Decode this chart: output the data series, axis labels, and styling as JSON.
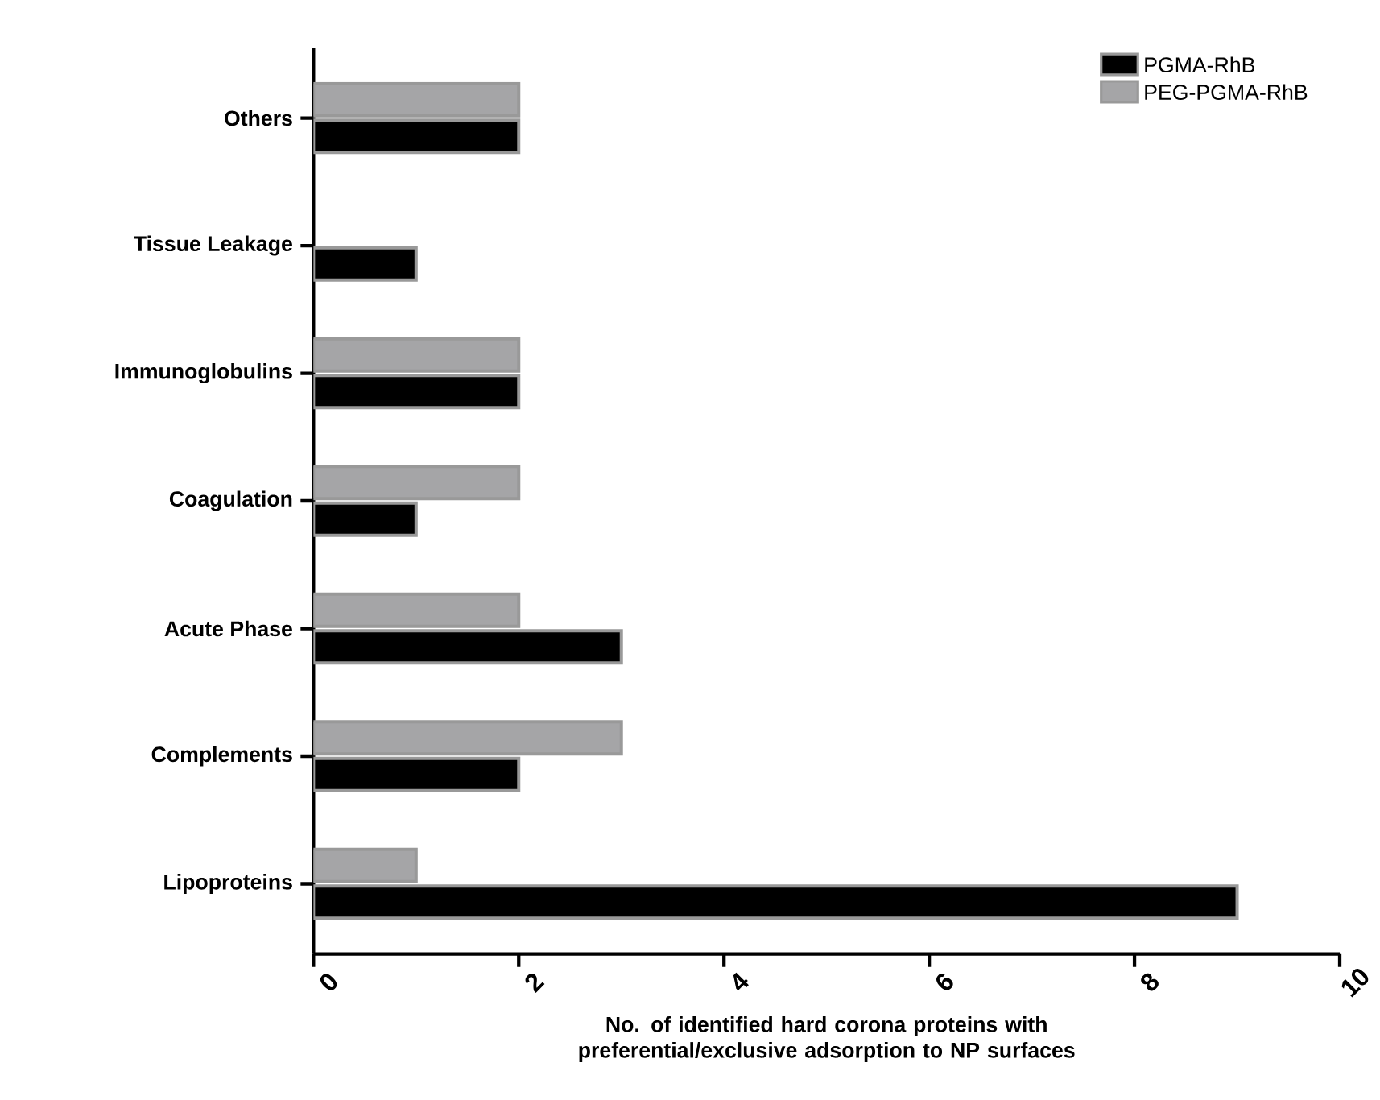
{
  "chart_data": {
    "type": "bar",
    "orientation": "horizontal",
    "xlabel": "No. of identified hard corona proteins with preferential/exclusive adsorption to NP surfaces",
    "categories": [
      "Others",
      "Tissue Leakage",
      "Immunoglobulins",
      "Coagulation",
      "Acute Phase",
      "Complements",
      "Lipoproteins"
    ],
    "series": [
      {
        "name": "PGMA-RhB",
        "color": "#000000",
        "values": [
          2,
          1,
          2,
          1,
          3,
          2,
          9
        ]
      },
      {
        "name": "PEG-PGMA-RhB",
        "color": "#a5a5a7",
        "values": [
          2,
          null,
          2,
          2,
          2,
          3,
          1
        ]
      }
    ],
    "xlim": [
      0,
      10
    ],
    "xticks": [
      0,
      2,
      4,
      6,
      8,
      10
    ],
    "grid": false,
    "legend": "top right"
  }
}
